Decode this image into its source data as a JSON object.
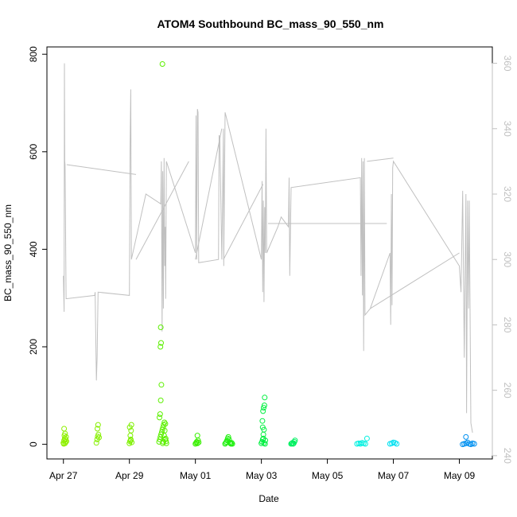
{
  "chart_data": {
    "type": "scatter",
    "title": "ATOM4 Southbound BC_mass_90_550_nm",
    "xlabel": "Date",
    "ylabel": "BC_mass_90_550_nm",
    "x_ticks": [
      "Apr 27",
      "Apr 29",
      "May 01",
      "May 03",
      "May 05",
      "May 07",
      "May 09"
    ],
    "y_ticks": [
      "0",
      "200",
      "400",
      "600",
      "800"
    ],
    "y_right_ticks": [
      "240",
      "260",
      "280",
      "300",
      "320",
      "340",
      "360"
    ],
    "xlim": [
      "2018-04-26T12:00",
      "2018-05-09T23:00"
    ],
    "ylim": [
      -30,
      815
    ],
    "y_right_lim": [
      239,
      365
    ],
    "right_axis_color": "#c0c0c0",
    "line_color": "#c0c0c0",
    "points": [
      {
        "day": "2018-04-27",
        "color": "#8ef000",
        "values": [
          [
            0.0,
            3
          ],
          [
            0.02,
            8
          ],
          [
            0.04,
            12
          ],
          [
            0.06,
            5
          ],
          [
            0.03,
            18
          ],
          [
            0.05,
            2
          ],
          [
            0.01,
            1
          ],
          [
            0.07,
            10
          ],
          [
            0.08,
            15
          ],
          [
            0.02,
            32
          ],
          [
            0.05,
            22
          ],
          [
            0.09,
            6
          ]
        ]
      },
      {
        "day": "2018-04-28",
        "color": "#86f000",
        "values": [
          [
            1.0,
            3
          ],
          [
            1.02,
            10
          ],
          [
            1.04,
            16
          ],
          [
            1.06,
            20
          ],
          [
            1.03,
            32
          ],
          [
            1.05,
            40
          ],
          [
            1.08,
            14
          ]
        ]
      },
      {
        "day": "2018-04-29",
        "color": "#7ef000",
        "values": [
          [
            2.0,
            2
          ],
          [
            2.02,
            6
          ],
          [
            2.04,
            10
          ],
          [
            2.03,
            18
          ],
          [
            2.05,
            28
          ],
          [
            2.01,
            35
          ],
          [
            2.06,
            40
          ],
          [
            2.04,
            8
          ],
          [
            2.07,
            4
          ]
        ]
      },
      {
        "day": "2018-04-30",
        "color": "#5cf000",
        "values": [
          [
            2.9,
            5
          ],
          [
            2.92,
            10
          ],
          [
            2.94,
            15
          ],
          [
            2.96,
            20
          ],
          [
            2.98,
            25
          ],
          [
            3.0,
            30
          ],
          [
            3.02,
            35
          ],
          [
            3.04,
            40
          ],
          [
            3.06,
            45
          ],
          [
            3.08,
            10
          ],
          [
            2.91,
            55
          ],
          [
            2.93,
            62
          ],
          [
            2.95,
            90
          ],
          [
            2.97,
            122
          ],
          [
            2.94,
            200
          ],
          [
            2.96,
            208
          ],
          [
            2.95,
            240
          ],
          [
            3.0,
            780
          ],
          [
            3.01,
            2
          ],
          [
            3.03,
            5
          ],
          [
            3.05,
            18
          ],
          [
            3.07,
            28
          ],
          [
            3.09,
            42
          ],
          [
            3.1,
            12
          ],
          [
            3.12,
            2
          ],
          [
            3.11,
            6
          ]
        ]
      },
      {
        "day": "2018-05-01",
        "color": "#38f000",
        "values": [
          [
            4.0,
            1
          ],
          [
            4.02,
            3
          ],
          [
            4.04,
            5
          ],
          [
            4.06,
            2
          ],
          [
            4.08,
            8
          ],
          [
            4.1,
            4
          ],
          [
            4.06,
            18
          ]
        ]
      },
      {
        "day": "2018-05-02",
        "color": "#20f010",
        "values": [
          [
            4.9,
            1
          ],
          [
            4.92,
            3
          ],
          [
            4.94,
            5
          ],
          [
            4.96,
            8
          ],
          [
            4.98,
            12
          ],
          [
            5.0,
            15
          ],
          [
            5.02,
            10
          ],
          [
            5.04,
            4
          ],
          [
            5.06,
            2
          ],
          [
            5.08,
            1
          ],
          [
            5.1,
            3
          ],
          [
            5.12,
            1
          ]
        ]
      },
      {
        "day": "2018-05-03",
        "color": "#00f040",
        "values": [
          [
            6.0,
            2
          ],
          [
            6.02,
            5
          ],
          [
            6.04,
            10
          ],
          [
            6.06,
            20
          ],
          [
            6.08,
            30
          ],
          [
            6.03,
            48
          ],
          [
            6.05,
            68
          ],
          [
            6.07,
            75
          ],
          [
            6.09,
            80
          ],
          [
            6.1,
            96
          ],
          [
            6.04,
            35
          ],
          [
            6.06,
            12
          ],
          [
            6.08,
            3
          ],
          [
            6.11,
            1
          ],
          [
            6.12,
            8
          ]
        ]
      },
      {
        "day": "2018-05-04",
        "color": "#00f060",
        "values": [
          [
            6.9,
            1
          ],
          [
            6.92,
            2
          ],
          [
            6.94,
            3
          ],
          [
            6.96,
            1
          ],
          [
            6.98,
            2
          ],
          [
            7.0,
            5
          ],
          [
            7.02,
            8
          ]
        ]
      },
      {
        "day": "2018-05-06",
        "color": "#00f0e0",
        "values": [
          [
            8.9,
            1
          ],
          [
            8.95,
            2
          ],
          [
            9.0,
            1
          ],
          [
            9.05,
            3
          ],
          [
            9.1,
            2
          ],
          [
            9.15,
            1
          ],
          [
            9.2,
            12
          ]
        ]
      },
      {
        "day": "2018-05-07",
        "color": "#00e0f0",
        "values": [
          [
            9.9,
            1
          ],
          [
            9.95,
            2
          ],
          [
            10.0,
            4
          ],
          [
            10.05,
            3
          ],
          [
            10.1,
            1
          ]
        ]
      },
      {
        "day": "2018-05-09",
        "color": "#0090f0",
        "values": [
          [
            12.1,
            0
          ],
          [
            12.15,
            1
          ],
          [
            12.2,
            2
          ],
          [
            12.25,
            4
          ],
          [
            12.3,
            1
          ],
          [
            12.35,
            0
          ],
          [
            12.2,
            15
          ],
          [
            12.4,
            2
          ],
          [
            12.45,
            1
          ]
        ]
      }
    ],
    "line_series": [
      [
        0.0,
        295
      ],
      [
        0.02,
        284
      ],
      [
        0.03,
        360
      ],
      [
        0.04,
        330
      ],
      [
        0.05,
        329
      ],
      [
        0.08,
        288
      ],
      [
        0.95,
        289
      ],
      [
        0.96,
        290
      ],
      [
        1.0,
        263
      ],
      [
        1.02,
        270
      ],
      [
        1.05,
        290
      ],
      [
        2.0,
        289
      ],
      [
        2.02,
        333
      ],
      [
        2.04,
        352
      ],
      [
        2.06,
        300
      ],
      [
        2.5,
        320
      ],
      [
        2.95,
        317
      ],
      [
        2.97,
        330
      ],
      [
        2.99,
        278
      ],
      [
        3.01,
        327
      ],
      [
        3.03,
        285
      ],
      [
        3.05,
        331
      ],
      [
        3.07,
        298
      ],
      [
        3.09,
        310
      ],
      [
        3.1,
        288
      ],
      [
        3.12,
        330
      ],
      [
        4.0,
        302
      ],
      [
        4.02,
        344
      ],
      [
        4.04,
        300
      ],
      [
        4.06,
        346
      ],
      [
        4.08,
        345
      ],
      [
        4.1,
        299
      ],
      [
        4.7,
        300
      ],
      [
        4.72,
        338
      ],
      [
        4.74,
        337
      ],
      [
        4.8,
        300
      ],
      [
        4.85,
        340
      ],
      [
        4.86,
        298
      ],
      [
        4.9,
        345
      ],
      [
        6.0,
        300
      ],
      [
        6.02,
        324
      ],
      [
        6.04,
        290
      ],
      [
        6.06,
        318
      ],
      [
        6.08,
        287
      ],
      [
        6.1,
        316
      ],
      [
        6.12,
        302
      ],
      [
        6.14,
        340
      ],
      [
        6.16,
        302
      ],
      [
        6.5,
        310
      ],
      [
        6.6,
        313
      ],
      [
        6.82,
        310
      ],
      [
        6.84,
        325
      ],
      [
        6.86,
        295
      ],
      [
        6.9,
        322
      ],
      [
        9.0,
        325
      ],
      [
        9.02,
        295
      ],
      [
        9.04,
        331
      ],
      [
        9.06,
        289
      ],
      [
        9.08,
        330
      ],
      [
        9.1,
        272
      ],
      [
        9.12,
        331
      ],
      [
        9.14,
        283
      ],
      [
        9.3,
        285
      ],
      [
        9.9,
        302
      ],
      [
        9.92,
        280
      ],
      [
        9.94,
        320
      ],
      [
        9.96,
        286
      ],
      [
        9.98,
        328
      ],
      [
        10.0,
        330
      ],
      [
        12.0,
        298
      ],
      [
        12.05,
        290
      ],
      [
        12.1,
        321
      ],
      [
        12.15,
        270
      ],
      [
        12.2,
        320
      ],
      [
        12.22,
        253
      ],
      [
        12.25,
        318
      ],
      [
        12.28,
        285
      ],
      [
        12.3,
        318
      ],
      [
        12.35,
        250
      ],
      [
        12.4,
        247
      ]
    ],
    "line_segments_extra": [
      [
        [
          0.1,
          329
        ],
        [
          2.2,
          326
        ]
      ],
      [
        [
          2.2,
          300
        ],
        [
          3.8,
          330
        ]
      ],
      [
        [
          4.0,
          300
        ],
        [
          4.8,
          340
        ]
      ],
      [
        [
          4.85,
          300
        ],
        [
          6.05,
          323
        ]
      ],
      [
        [
          6.2,
          311
        ],
        [
          9.8,
          311
        ]
      ],
      [
        [
          9.2,
          330
        ],
        [
          10.0,
          331
        ]
      ],
      [
        [
          9.3,
          285
        ],
        [
          12.0,
          302
        ]
      ]
    ]
  }
}
